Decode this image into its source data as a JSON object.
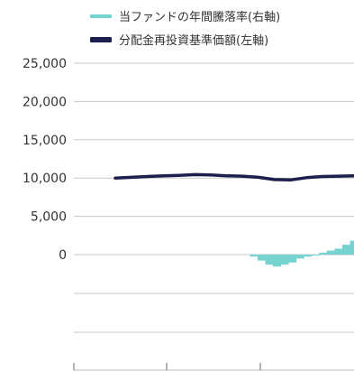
{
  "legend": [
    {
      "label": "当ファンドの年間騰落率(右軸)",
      "color": "#76d3d0"
    },
    {
      "label": "分配金再投資基準価額(左軸)",
      "color": "#1a1f4d"
    }
  ],
  "chart_data": {
    "type": "line",
    "title": "",
    "y_left_ticks": [
      "25,000",
      "20,000",
      "15,000",
      "10,000",
      "5,000",
      "0"
    ],
    "ylim_left": [
      0,
      25000
    ],
    "grid": true,
    "series": [
      {
        "name": "分配金再投資基準価額(左軸)",
        "axis": "left",
        "color": "#1a1f4d",
        "x": [
          0,
          2,
          4,
          6,
          8,
          10,
          12,
          14,
          16,
          18,
          20,
          22,
          24,
          26,
          28,
          30
        ],
        "values": [
          10000,
          10100,
          10200,
          10300,
          10350,
          10450,
          10400,
          10300,
          10250,
          10100,
          9800,
          9750,
          10050,
          10200,
          10250,
          10300
        ]
      },
      {
        "name": "当ファンドの年間騰落率(右軸)",
        "axis": "right",
        "type": "bar",
        "color": "#76d3d0",
        "x": [
          18,
          19,
          20,
          21,
          22,
          23,
          24,
          25,
          26,
          27,
          28,
          29,
          30,
          31
        ],
        "values": [
          -1,
          -3,
          -5,
          -6,
          -5,
          -4,
          -2,
          -1,
          0,
          1,
          2,
          3,
          5,
          7
        ]
      }
    ]
  }
}
